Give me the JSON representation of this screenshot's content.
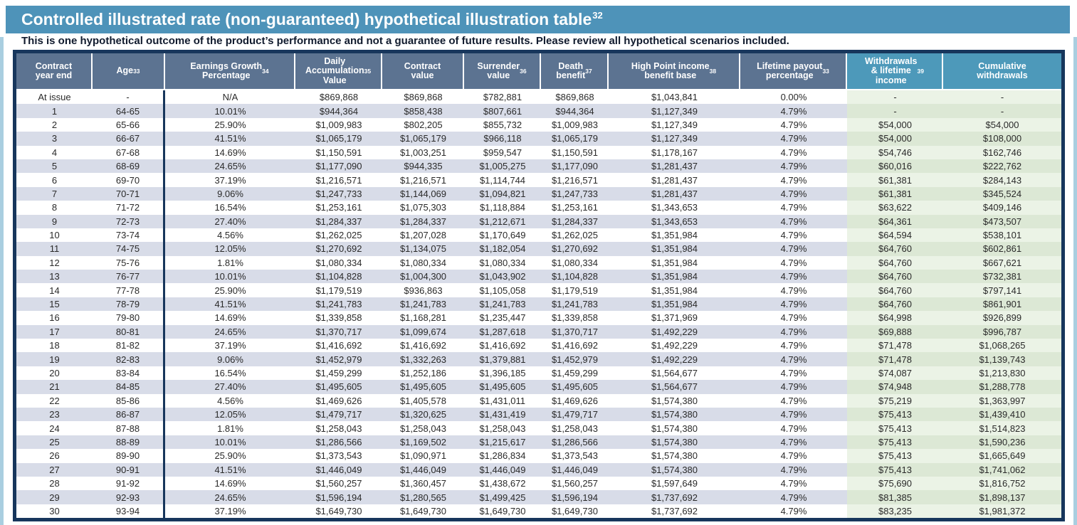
{
  "page": {
    "title": {
      "text": "Controlled illustrated rate (non-guaranteed) hypothetical illustration table",
      "sup": "32"
    },
    "subtitle": "This is one hypothetical outcome of the product’s performance and not a guarantee of future results. Please review all hypothetical scenarios included."
  },
  "colors": {
    "title_bar": "#4E93B9",
    "header_bg": "#5C7391",
    "header_highlight_bg": "#4D99BA",
    "border_navy": "#17365C",
    "row_alt_bg": "#D8DCE8",
    "green_even": "#EBF3E6",
    "green_odd": "#DCE8D5",
    "edge_strip": "#A9CEE0",
    "subtitle_text": "#111B2E",
    "body_text": "#2A2A2A"
  },
  "table": {
    "columns": [
      {
        "id": "contract-year-end",
        "label": "Contract\nyear end",
        "sup": "",
        "highlight": false
      },
      {
        "id": "age",
        "label": "Age",
        "sup": "33",
        "highlight": false
      },
      {
        "id": "earnings-growth-percentage",
        "label": "Earnings Growth\nPercentage",
        "sup": "34",
        "highlight": false
      },
      {
        "id": "daily-accumulation-value",
        "label": "Daily\nAccumulation\nValue",
        "sup": "35",
        "highlight": false
      },
      {
        "id": "contract-value",
        "label": "Contract\nvalue",
        "sup": "",
        "highlight": false
      },
      {
        "id": "surrender-value",
        "label": "Surrender\nvalue",
        "sup": "36",
        "highlight": false
      },
      {
        "id": "death-benefit",
        "label": "Death\nbenefit",
        "sup": "37",
        "highlight": false
      },
      {
        "id": "high-point-income-benefit-base",
        "label": "High Point income\nbenefit base",
        "sup": "38",
        "highlight": false
      },
      {
        "id": "lifetime-payout-percentage",
        "label": "Lifetime payout\npercentage",
        "sup": "33",
        "highlight": false
      },
      {
        "id": "withdrawals-lifetime-income",
        "label": "Withdrawals\n& lifetime\nincome",
        "sup": "39",
        "highlight": true
      },
      {
        "id": "cumulative-withdrawals",
        "label": "Cumulative\nwithdrawals",
        "sup": "",
        "highlight": true
      }
    ],
    "rows": [
      [
        "At issue",
        "-",
        "N/A",
        "$869,868",
        "$869,868",
        "$782,881",
        "$869,868",
        "$1,043,841",
        "0.00%",
        "-",
        "-"
      ],
      [
        "1",
        "64-65",
        "10.01%",
        "$944,364",
        "$858,438",
        "$807,661",
        "$944,364",
        "$1,127,349",
        "4.79%",
        "-",
        "-"
      ],
      [
        "2",
        "65-66",
        "25.90%",
        "$1,009,983",
        "$802,205",
        "$855,732",
        "$1,009,983",
        "$1,127,349",
        "4.79%",
        "$54,000",
        "$54,000"
      ],
      [
        "3",
        "66-67",
        "41.51%",
        "$1,065,179",
        "$1,065,179",
        "$966,118",
        "$1,065,179",
        "$1,127,349",
        "4.79%",
        "$54,000",
        "$108,000"
      ],
      [
        "4",
        "67-68",
        "14.69%",
        "$1,150,591",
        "$1,003,251",
        "$959,547",
        "$1,150,591",
        "$1,178,167",
        "4.79%",
        "$54,746",
        "$162,746"
      ],
      [
        "5",
        "68-69",
        "24.65%",
        "$1,177,090",
        "$944,335",
        "$1,005,275",
        "$1,177,090",
        "$1,281,437",
        "4.79%",
        "$60,016",
        "$222,762"
      ],
      [
        "6",
        "69-70",
        "37.19%",
        "$1,216,571",
        "$1,216,571",
        "$1,114,744",
        "$1,216,571",
        "$1,281,437",
        "4.79%",
        "$61,381",
        "$284,143"
      ],
      [
        "7",
        "70-71",
        "9.06%",
        "$1,247,733",
        "$1,144,069",
        "$1,094,821",
        "$1,247,733",
        "$1,281,437",
        "4.79%",
        "$61,381",
        "$345,524"
      ],
      [
        "8",
        "71-72",
        "16.54%",
        "$1,253,161",
        "$1,075,303",
        "$1,118,884",
        "$1,253,161",
        "$1,343,653",
        "4.79%",
        "$63,622",
        "$409,146"
      ],
      [
        "9",
        "72-73",
        "27.40%",
        "$1,284,337",
        "$1,284,337",
        "$1,212,671",
        "$1,284,337",
        "$1,343,653",
        "4.79%",
        "$64,361",
        "$473,507"
      ],
      [
        "10",
        "73-74",
        "4.56%",
        "$1,262,025",
        "$1,207,028",
        "$1,170,649",
        "$1,262,025",
        "$1,351,984",
        "4.79%",
        "$64,594",
        "$538,101"
      ],
      [
        "11",
        "74-75",
        "12.05%",
        "$1,270,692",
        "$1,134,075",
        "$1,182,054",
        "$1,270,692",
        "$1,351,984",
        "4.79%",
        "$64,760",
        "$602,861"
      ],
      [
        "12",
        "75-76",
        "1.81%",
        "$1,080,334",
        "$1,080,334",
        "$1,080,334",
        "$1,080,334",
        "$1,351,984",
        "4.79%",
        "$64,760",
        "$667,621"
      ],
      [
        "13",
        "76-77",
        "10.01%",
        "$1,104,828",
        "$1,004,300",
        "$1,043,902",
        "$1,104,828",
        "$1,351,984",
        "4.79%",
        "$64,760",
        "$732,381"
      ],
      [
        "14",
        "77-78",
        "25.90%",
        "$1,179,519",
        "$936,863",
        "$1,105,058",
        "$1,179,519",
        "$1,351,984",
        "4.79%",
        "$64,760",
        "$797,141"
      ],
      [
        "15",
        "78-79",
        "41.51%",
        "$1,241,783",
        "$1,241,783",
        "$1,241,783",
        "$1,241,783",
        "$1,351,984",
        "4.79%",
        "$64,760",
        "$861,901"
      ],
      [
        "16",
        "79-80",
        "14.69%",
        "$1,339,858",
        "$1,168,281",
        "$1,235,447",
        "$1,339,858",
        "$1,371,969",
        "4.79%",
        "$64,998",
        "$926,899"
      ],
      [
        "17",
        "80-81",
        "24.65%",
        "$1,370,717",
        "$1,099,674",
        "$1,287,618",
        "$1,370,717",
        "$1,492,229",
        "4.79%",
        "$69,888",
        "$996,787"
      ],
      [
        "18",
        "81-82",
        "37.19%",
        "$1,416,692",
        "$1,416,692",
        "$1,416,692",
        "$1,416,692",
        "$1,492,229",
        "4.79%",
        "$71,478",
        "$1,068,265"
      ],
      [
        "19",
        "82-83",
        "9.06%",
        "$1,452,979",
        "$1,332,263",
        "$1,379,881",
        "$1,452,979",
        "$1,492,229",
        "4.79%",
        "$71,478",
        "$1,139,743"
      ],
      [
        "20",
        "83-84",
        "16.54%",
        "$1,459,299",
        "$1,252,186",
        "$1,396,185",
        "$1,459,299",
        "$1,564,677",
        "4.79%",
        "$74,087",
        "$1,213,830"
      ],
      [
        "21",
        "84-85",
        "27.40%",
        "$1,495,605",
        "$1,495,605",
        "$1,495,605",
        "$1,495,605",
        "$1,564,677",
        "4.79%",
        "$74,948",
        "$1,288,778"
      ],
      [
        "22",
        "85-86",
        "4.56%",
        "$1,469,626",
        "$1,405,578",
        "$1,431,011",
        "$1,469,626",
        "$1,574,380",
        "4.79%",
        "$75,219",
        "$1,363,997"
      ],
      [
        "23",
        "86-87",
        "12.05%",
        "$1,479,717",
        "$1,320,625",
        "$1,431,419",
        "$1,479,717",
        "$1,574,380",
        "4.79%",
        "$75,413",
        "$1,439,410"
      ],
      [
        "24",
        "87-88",
        "1.81%",
        "$1,258,043",
        "$1,258,043",
        "$1,258,043",
        "$1,258,043",
        "$1,574,380",
        "4.79%",
        "$75,413",
        "$1,514,823"
      ],
      [
        "25",
        "88-89",
        "10.01%",
        "$1,286,566",
        "$1,169,502",
        "$1,215,617",
        "$1,286,566",
        "$1,574,380",
        "4.79%",
        "$75,413",
        "$1,590,236"
      ],
      [
        "26",
        "89-90",
        "25.90%",
        "$1,373,543",
        "$1,090,971",
        "$1,286,834",
        "$1,373,543",
        "$1,574,380",
        "4.79%",
        "$75,413",
        "$1,665,649"
      ],
      [
        "27",
        "90-91",
        "41.51%",
        "$1,446,049",
        "$1,446,049",
        "$1,446,049",
        "$1,446,049",
        "$1,574,380",
        "4.79%",
        "$75,413",
        "$1,741,062"
      ],
      [
        "28",
        "91-92",
        "14.69%",
        "$1,560,257",
        "$1,360,457",
        "$1,438,672",
        "$1,560,257",
        "$1,597,649",
        "4.79%",
        "$75,690",
        "$1,816,752"
      ],
      [
        "29",
        "92-93",
        "24.65%",
        "$1,596,194",
        "$1,280,565",
        "$1,499,425",
        "$1,596,194",
        "$1,737,692",
        "4.79%",
        "$81,385",
        "$1,898,137"
      ],
      [
        "30",
        "93-94",
        "37.19%",
        "$1,649,730",
        "$1,649,730",
        "$1,649,730",
        "$1,649,730",
        "$1,737,692",
        "4.79%",
        "$83,235",
        "$1,981,372"
      ]
    ]
  }
}
